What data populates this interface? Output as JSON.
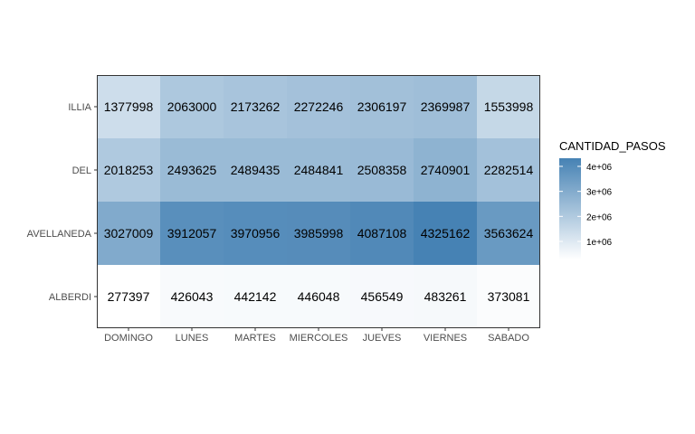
{
  "chart_data": {
    "type": "heatmap",
    "x_categories": [
      "DOMINGO",
      "LUNES",
      "MARTES",
      "MIERCOLES",
      "JUEVES",
      "VIERNES",
      "SABADO"
    ],
    "y_categories": [
      "ALBERDI",
      "AVELLANEDA",
      "DEL",
      "ILLIA"
    ],
    "values": [
      [
        277397,
        426043,
        442142,
        446048,
        456549,
        483261,
        373081
      ],
      [
        3027009,
        3912057,
        3970956,
        3985998,
        4087108,
        4325162,
        3563624
      ],
      [
        2018253,
        2493625,
        2489435,
        2484841,
        2508358,
        2740901,
        2282514
      ],
      [
        1377998,
        2063000,
        2173262,
        2272246,
        2306197,
        2369987,
        1553998
      ]
    ],
    "legend": {
      "title": "CANTIDAD_PASOS",
      "ticks": [
        {
          "value": 1000000,
          "label": "1e+06"
        },
        {
          "value": 2000000,
          "label": "2e+06"
        },
        {
          "value": 3000000,
          "label": "3e+06"
        },
        {
          "value": 4000000,
          "label": "4e+06"
        }
      ],
      "placement": "right"
    },
    "color_low": "#ffffff",
    "color_high": "#4682b4",
    "value_min": 277397,
    "value_max": 4325162,
    "grid": false
  }
}
